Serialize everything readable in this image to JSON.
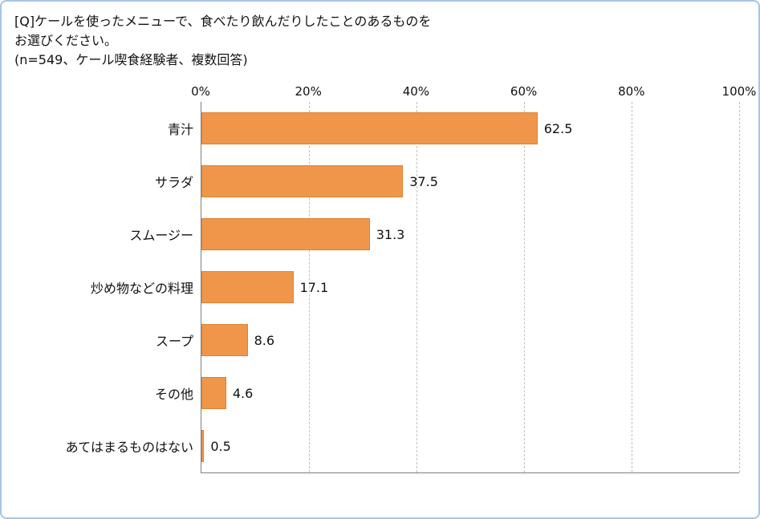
{
  "header": {
    "line1": "[Q]ケールを使ったメニューで、食べたり飲んだりしたことのあるものを",
    "line2": "お選びください。",
    "line3": "(n=549、ケール喫食経験者、複数回答)"
  },
  "chart_data": {
    "type": "bar",
    "orientation": "horizontal",
    "title": "",
    "categories": [
      "青汁",
      "サラダ",
      "スムージー",
      "炒め物などの料理",
      "スープ",
      "その他",
      "あてはまるものはない"
    ],
    "values": [
      62.5,
      37.5,
      31.3,
      17.1,
      8.6,
      4.6,
      0.5
    ],
    "x_ticks": [
      "0%",
      "20%",
      "40%",
      "60%",
      "80%",
      "100%"
    ],
    "xlim": [
      0,
      100
    ],
    "grid": "dashed-vertical",
    "legend": "none",
    "bar_color": "#F0964B",
    "bar_border_color": "#E0812F"
  },
  "style": {
    "frame_border_color": "#A3C6E8",
    "axis_color": "#7F7F7F",
    "grid_color": "#BFBFBF"
  }
}
